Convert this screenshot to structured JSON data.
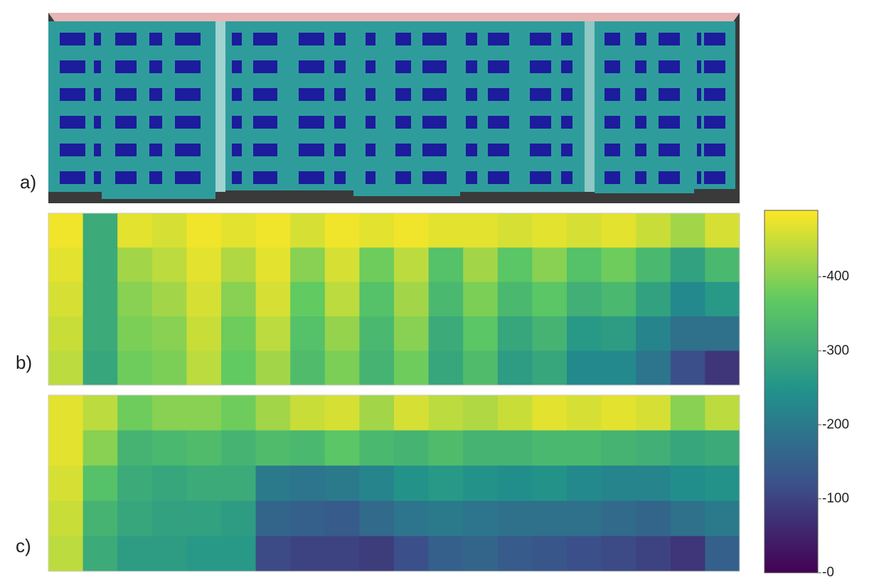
{
  "panels": [
    {
      "label": "a)"
    },
    {
      "label": "b)",
      "values": [
        [
          480,
          300,
          470,
          460,
          480,
          470,
          480,
          460,
          480,
          470,
          480,
          470,
          470,
          460,
          470,
          460,
          470,
          450,
          420,
          460
        ],
        [
          470,
          300,
          420,
          440,
          470,
          430,
          470,
          400,
          460,
          380,
          440,
          350,
          420,
          360,
          400,
          350,
          380,
          330,
          280,
          330
        ],
        [
          460,
          300,
          400,
          420,
          460,
          400,
          460,
          370,
          440,
          350,
          420,
          330,
          390,
          330,
          360,
          310,
          330,
          280,
          230,
          260
        ],
        [
          450,
          300,
          390,
          400,
          450,
          380,
          440,
          350,
          410,
          330,
          400,
          300,
          360,
          290,
          320,
          260,
          270,
          220,
          180,
          180
        ],
        [
          440,
          290,
          380,
          390,
          440,
          370,
          420,
          340,
          390,
          320,
          380,
          290,
          340,
          270,
          290,
          230,
          230,
          190,
          120,
          80
        ]
      ]
    },
    {
      "label": "c)",
      "values": [
        [
          470,
          440,
          380,
          400,
          400,
          380,
          420,
          450,
          460,
          420,
          460,
          440,
          430,
          450,
          470,
          460,
          470,
          460,
          400,
          440
        ],
        [
          470,
          400,
          320,
          330,
          340,
          320,
          340,
          330,
          360,
          330,
          320,
          340,
          320,
          320,
          330,
          330,
          320,
          310,
          290,
          300
        ],
        [
          460,
          350,
          300,
          290,
          300,
          300,
          200,
          190,
          200,
          220,
          250,
          260,
          250,
          240,
          250,
          230,
          220,
          220,
          240,
          250
        ],
        [
          450,
          320,
          290,
          280,
          280,
          270,
          160,
          150,
          140,
          170,
          190,
          200,
          190,
          180,
          180,
          180,
          170,
          160,
          180,
          200
        ],
        [
          440,
          300,
          270,
          270,
          260,
          260,
          110,
          100,
          100,
          90,
          120,
          150,
          160,
          140,
          130,
          120,
          110,
          100,
          80,
          150
        ]
      ]
    }
  ],
  "colorbar": {
    "cmap": "viridis",
    "lim": [
      0,
      490
    ],
    "ticks": [
      {
        "value": 400,
        "label": "-400"
      },
      {
        "value": 300,
        "label": "-300"
      },
      {
        "value": 200,
        "label": "-200"
      },
      {
        "value": 100,
        "label": "-100"
      },
      {
        "value": 0,
        "label": "-0"
      }
    ]
  }
}
